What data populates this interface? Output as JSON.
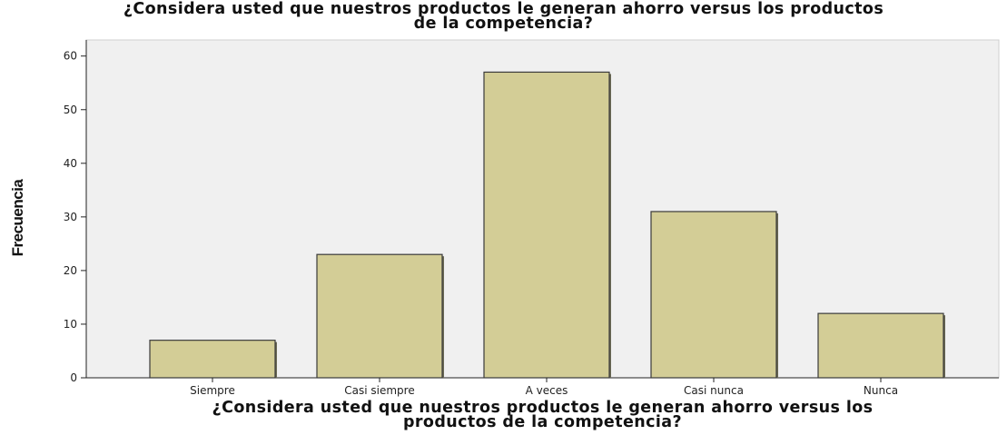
{
  "chart_data": {
    "type": "bar",
    "title": "¿Considera usted que nuestros productos le generan ahorro versus los productos de la competencia?",
    "xlabel": "¿Considera usted que nuestros productos le generan ahorro versus los productos de la competencia?",
    "ylabel": "Frecuencia",
    "categories": [
      "Siempre",
      "Casi siempre",
      "A veces",
      "Casi nunca",
      "Nunca"
    ],
    "values": [
      7,
      23,
      57,
      31,
      12
    ],
    "ylim": [
      0,
      63
    ],
    "yticks": [
      0,
      10,
      20,
      30,
      40,
      50,
      60
    ],
    "grid": false,
    "colors": {
      "plot_background": "#f0f0f0",
      "bar_fill": "#d3cd96",
      "bar_stroke": "#3a3a3a",
      "bar_shadow": "#6b6a55"
    }
  }
}
